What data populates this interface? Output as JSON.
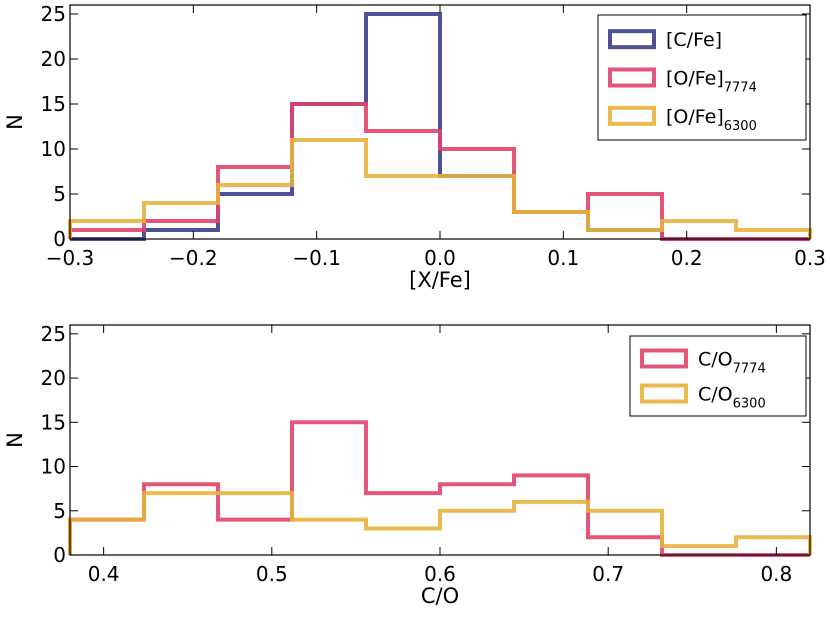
{
  "chart_data": [
    {
      "type": "histogram",
      "xlabel": "[X/Fe]",
      "ylabel": "N",
      "xlim": [
        -0.3,
        0.3
      ],
      "ylim": [
        0,
        26
      ],
      "xticks": [
        -0.3,
        -0.2,
        -0.1,
        0.0,
        0.1,
        0.2,
        0.3
      ],
      "xtick_labels": [
        "−0.3",
        "−0.2",
        "−0.1",
        "0.0",
        "0.1",
        "0.2",
        "0.3"
      ],
      "yticks": [
        0,
        5,
        10,
        15,
        20,
        25
      ],
      "ytick_labels": [
        "0",
        "5",
        "10",
        "15",
        "20",
        "25"
      ],
      "bin_edges": [
        -0.3,
        -0.24,
        -0.18,
        -0.12,
        -0.06,
        0.0,
        0.06,
        0.12,
        0.18,
        0.24,
        0.3
      ],
      "legend_position": "top-right",
      "series": [
        {
          "name": "[C/Fe]",
          "label_main": "[C/Fe]",
          "label_sub": "",
          "color": "#3b3f8a",
          "values": [
            0,
            1,
            5,
            15,
            25,
            7,
            3,
            1,
            0,
            0
          ]
        },
        {
          "name": "[O/Fe]7774",
          "label_main": "[O/Fe]",
          "label_sub": "7774",
          "color": "#e0436a",
          "values": [
            1,
            2,
            8,
            15,
            12,
            10,
            3,
            5,
            0,
            0
          ]
        },
        {
          "name": "[O/Fe]6300",
          "label_main": "[O/Fe]",
          "label_sub": "6300",
          "color": "#e6b33c",
          "values": [
            2,
            4,
            6,
            11,
            7,
            7,
            3,
            1,
            2,
            1
          ]
        }
      ]
    },
    {
      "type": "histogram",
      "xlabel": "C/O",
      "ylabel": "N",
      "xlim": [
        0.38,
        0.82
      ],
      "ylim": [
        0,
        26
      ],
      "xticks": [
        0.4,
        0.5,
        0.6,
        0.7,
        0.8
      ],
      "xtick_labels": [
        "0.4",
        "0.5",
        "0.6",
        "0.7",
        "0.8"
      ],
      "yticks": [
        0,
        5,
        10,
        15,
        20,
        25
      ],
      "ytick_labels": [
        "0",
        "5",
        "10",
        "15",
        "20",
        "25"
      ],
      "bin_edges": [
        0.38,
        0.424,
        0.468,
        0.512,
        0.556,
        0.6,
        0.644,
        0.688,
        0.732,
        0.776,
        0.82
      ],
      "legend_position": "top-right",
      "series": [
        {
          "name": "C/O7774",
          "label_main": "C/O",
          "label_sub": "7774",
          "color": "#e0436a",
          "values": [
            4,
            8,
            4,
            15,
            7,
            8,
            9,
            2,
            0,
            0
          ]
        },
        {
          "name": "C/O6300",
          "label_main": "C/O",
          "label_sub": "6300",
          "color": "#e6b33c",
          "values": [
            4,
            7,
            7,
            4,
            3,
            5,
            6,
            5,
            1,
            2
          ]
        }
      ]
    }
  ]
}
